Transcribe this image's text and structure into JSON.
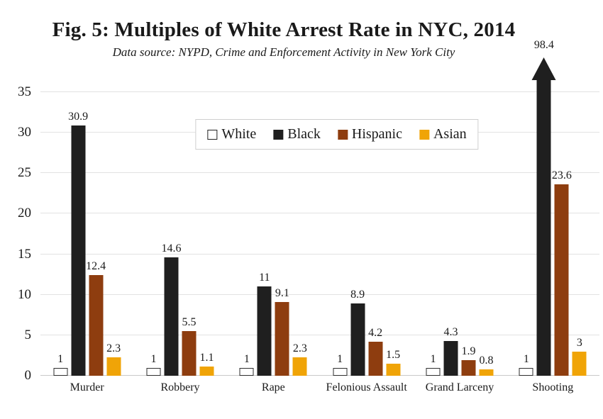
{
  "title": "Fig. 5: Multiples of White Arrest Rate in NYC, 2014",
  "subtitle": "Data source: NYPD, Crime and Enforcement Activity in New York City",
  "colors": {
    "white_series_fill": "#ffffff",
    "white_series_border": "#2e2e2e",
    "black_series": "#1f1f1f",
    "hispanic_series": "#8e3d0f",
    "asian_series": "#f0a407",
    "gridline": "#e2e2e2",
    "text": "#1a1a1a"
  },
  "legend": {
    "items": [
      {
        "label": "White",
        "swatch": "hollow"
      },
      {
        "label": "Black",
        "swatch": "#1f1f1f"
      },
      {
        "label": "Hispanic",
        "swatch": "#8e3d0f"
      },
      {
        "label": "Asian",
        "swatch": "#f0a407"
      }
    ]
  },
  "chart_data": {
    "type": "bar",
    "title": "Fig. 5: Multiples of White Arrest Rate in NYC, 2014",
    "subtitle": "Data source: NYPD, Crime and Enforcement Activity in New York City",
    "categories": [
      "Murder",
      "Robbery",
      "Rape",
      "Felonious Assault",
      "Grand Larceny",
      "Shooting"
    ],
    "series": [
      {
        "name": "White",
        "color": "#ffffff",
        "values": [
          1,
          1,
          1,
          1,
          1,
          1
        ],
        "labels": [
          "1",
          "1",
          "1",
          "1",
          "1",
          "1"
        ]
      },
      {
        "name": "Black",
        "color": "#1f1f1f",
        "values": [
          30.9,
          14.6,
          11,
          8.9,
          4.3,
          98.4
        ],
        "labels": [
          "30.9",
          "14.6",
          "11",
          "8.9",
          "4.3",
          "98.4"
        ]
      },
      {
        "name": "Hispanic",
        "color": "#8e3d0f",
        "values": [
          12.4,
          5.5,
          9.1,
          4.2,
          1.9,
          23.6
        ],
        "labels": [
          "12.4",
          "5.5",
          "9.1",
          "4.2",
          "1.9",
          "23.6"
        ]
      },
      {
        "name": "Asian",
        "color": "#f0a407",
        "values": [
          2.3,
          1.1,
          2.3,
          1.5,
          0.8,
          3
        ],
        "labels": [
          "2.3",
          "1.1",
          "2.3",
          "1.5",
          "0.8",
          "3"
        ]
      }
    ],
    "ylim": [
      0,
      35
    ],
    "yticks": [
      0,
      5,
      10,
      15,
      20,
      25,
      30,
      35
    ],
    "ytick_labels": [
      "0",
      "5",
      "10",
      "15",
      "20",
      "25",
      "30",
      "35"
    ],
    "grid": true,
    "legend_position": "top-center-inside",
    "overflow_annotation": {
      "category": "Shooting",
      "series": "Black",
      "value": 98.4,
      "label": "98.4",
      "style": "upward-arrow-clipped"
    }
  }
}
